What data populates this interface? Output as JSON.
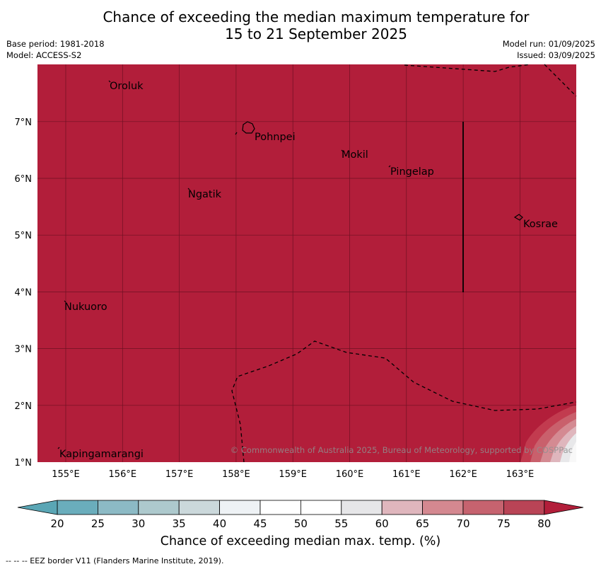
{
  "title_line1": "Chance of exceeding the median maximum temperature for",
  "title_line2": "15 to 21 September 2025",
  "meta_left": {
    "base_period": "Base period: 1981-2018",
    "model": "Model: ACCESS-S2"
  },
  "meta_right": {
    "model_run": "Model run: 01/09/2025",
    "issued": "Issued: 03/09/2025"
  },
  "map": {
    "fill_color": "#b21e3a",
    "lon_ticks": [
      "155°E",
      "156°E",
      "157°E",
      "158°E",
      "159°E",
      "160°E",
      "161°E",
      "162°E",
      "163°E"
    ],
    "lat_ticks": [
      "1°N",
      "2°N",
      "3°N",
      "4°N",
      "5°N",
      "6°N",
      "7°N"
    ],
    "places": [
      {
        "name": "Oroluk"
      },
      {
        "name": "Pohnpei"
      },
      {
        "name": "Mokil"
      },
      {
        "name": "Pingelap"
      },
      {
        "name": "Ngatik"
      },
      {
        "name": "Kosrae"
      },
      {
        "name": "Nukuoro"
      },
      {
        "name": "Kapingamarangi"
      }
    ],
    "copyright": "© Commonwealth of Australia 2025, Bureau of Meteorology, supported by COSPPac"
  },
  "colorbar": {
    "title": "Chance of exceeding median max. temp. (%)",
    "tick_labels": [
      "20",
      "25",
      "30",
      "35",
      "40",
      "45",
      "50",
      "55",
      "60",
      "65",
      "70",
      "75",
      "80"
    ],
    "colors": [
      "#6aadbc",
      "#8cbac5",
      "#adc9cd",
      "#cbd8db",
      "#eef2f5",
      "#ffffff",
      "#ffffff",
      "#e6e6e8",
      "#dfb6bd",
      "#d48890",
      "#c6636f",
      "#b94456"
    ],
    "low_extend_color": "#5aa6b5",
    "high_extend_color": "#b21e3a"
  },
  "footnote": "--  --  -- EEZ border V11 (Flanders Marine Institute, 2019)."
}
